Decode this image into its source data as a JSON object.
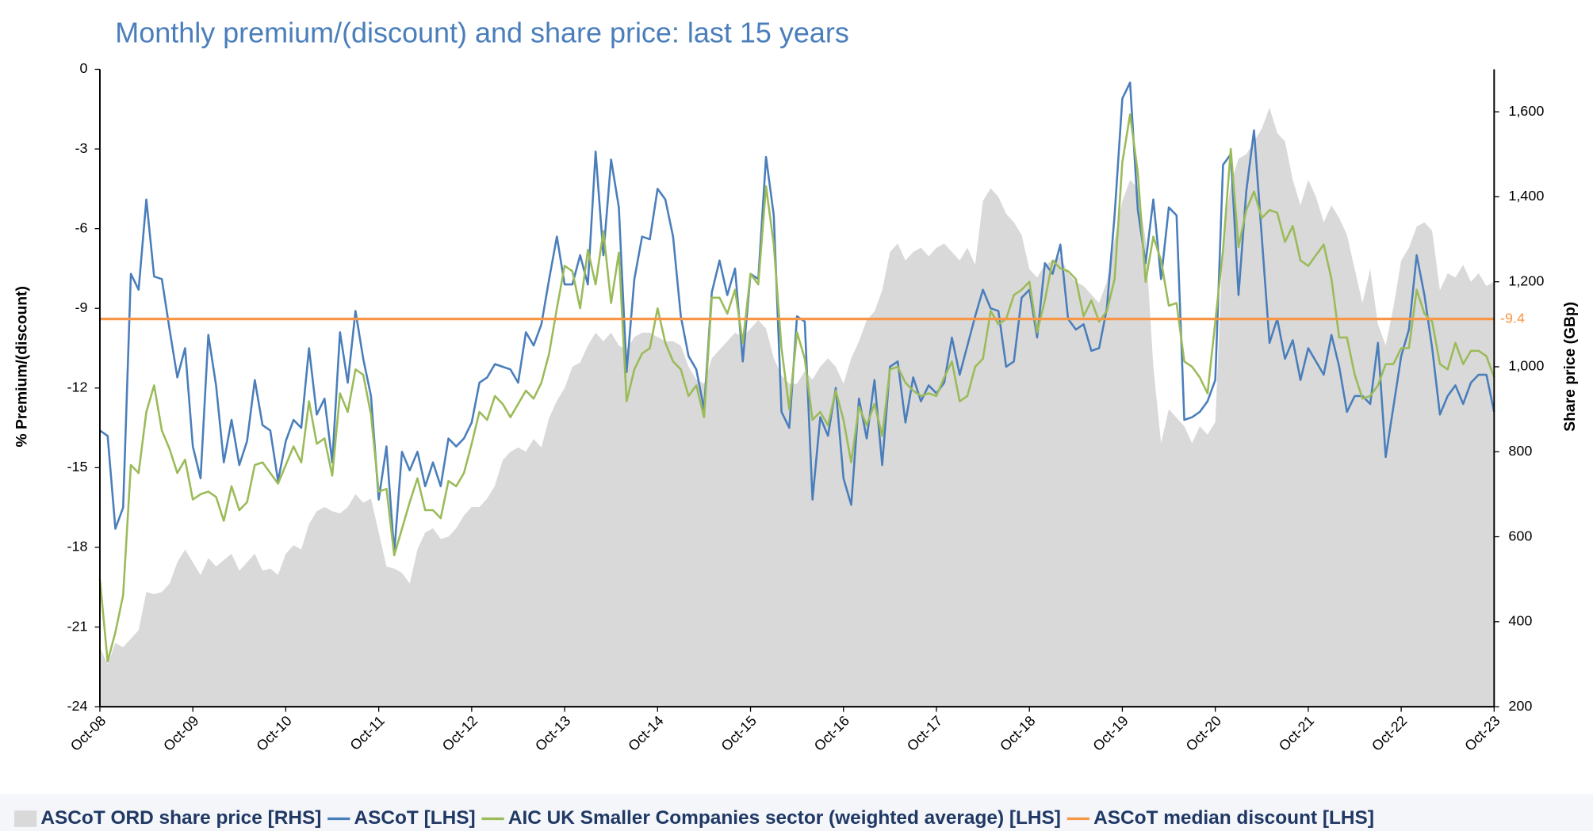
{
  "chart_data": {
    "type": "line",
    "title": "Monthly premium/(discount) and share price: last 15 years",
    "y_label": "% Premium/(discount)",
    "y2_label": "Share price (GBp)",
    "categories": [
      "Oct-08",
      null,
      null,
      null,
      null,
      null,
      null,
      null,
      null,
      null,
      null,
      null,
      "Oct-09",
      null,
      null,
      null,
      null,
      null,
      null,
      null,
      null,
      null,
      null,
      null,
      "Oct-10",
      null,
      null,
      null,
      null,
      null,
      null,
      null,
      null,
      null,
      null,
      null,
      "Oct-11",
      null,
      null,
      null,
      null,
      null,
      null,
      null,
      null,
      null,
      null,
      null,
      "Oct-12",
      null,
      null,
      null,
      null,
      null,
      null,
      null,
      null,
      null,
      null,
      null,
      "Oct-13",
      null,
      null,
      null,
      null,
      null,
      null,
      null,
      null,
      null,
      null,
      null,
      "Oct-14",
      null,
      null,
      null,
      null,
      null,
      null,
      null,
      null,
      null,
      null,
      null,
      "Oct-15",
      null,
      null,
      null,
      null,
      null,
      null,
      null,
      null,
      null,
      null,
      null,
      "Oct-16",
      null,
      null,
      null,
      null,
      null,
      null,
      null,
      null,
      null,
      null,
      null,
      "Oct-17",
      null,
      null,
      null,
      null,
      null,
      null,
      null,
      null,
      null,
      null,
      null,
      "Oct-18",
      null,
      null,
      null,
      null,
      null,
      null,
      null,
      null,
      null,
      null,
      null,
      "Oct-19",
      null,
      null,
      null,
      null,
      null,
      null,
      null,
      null,
      null,
      null,
      null,
      "Oct-20",
      null,
      null,
      null,
      null,
      null,
      null,
      null,
      null,
      null,
      null,
      null,
      "Oct-21",
      null,
      null,
      null,
      null,
      null,
      null,
      null,
      null,
      null,
      null,
      null,
      "Oct-22",
      null,
      null,
      null,
      null,
      null,
      null,
      null,
      null,
      null,
      null,
      null,
      "Oct-23"
    ],
    "series": [
      {
        "name": "ASCoT ORD share price [RHS]",
        "type": "area",
        "axis": "y2",
        "color": "#d9d9d9",
        "values": [
          340,
          300,
          350,
          340,
          360,
          380,
          470,
          465,
          470,
          490,
          540,
          570,
          540,
          510,
          550,
          530,
          545,
          560,
          520,
          540,
          560,
          520,
          525,
          510,
          560,
          580,
          570,
          630,
          660,
          670,
          660,
          655,
          670,
          700,
          680,
          690,
          610,
          530,
          525,
          515,
          490,
          570,
          610,
          620,
          595,
          600,
          620,
          650,
          670,
          670,
          690,
          720,
          780,
          800,
          810,
          800,
          830,
          810,
          880,
          920,
          950,
          1000,
          1010,
          1050,
          1080,
          1060,
          1080,
          1050,
          1040,
          1070,
          1080,
          1080,
          1070,
          1060,
          1060,
          1050,
          1000,
          970,
          960,
          1020,
          1040,
          1060,
          1080,
          1070,
          1090,
          1110,
          1090,
          1020,
          980,
          960,
          960,
          990,
          970,
          1000,
          1020,
          1000,
          960,
          1020,
          1060,
          1110,
          1130,
          1180,
          1270,
          1290,
          1250,
          1270,
          1280,
          1260,
          1280,
          1290,
          1270,
          1250,
          1280,
          1240,
          1390,
          1420,
          1400,
          1360,
          1340,
          1310,
          1230,
          1210,
          1240,
          1250,
          1260,
          1220,
          1200,
          1190,
          1170,
          1150,
          1200,
          1300,
          1390,
          1440,
          1420,
          1300,
          1000,
          820,
          900,
          880,
          860,
          820,
          860,
          840,
          870,
          1300,
          1430,
          1490,
          1500,
          1530,
          1560,
          1610,
          1550,
          1530,
          1440,
          1380,
          1440,
          1400,
          1340,
          1380,
          1350,
          1310,
          1230,
          1150,
          1230,
          1100,
          1050,
          1140,
          1250,
          1280,
          1330,
          1340,
          1320,
          1180,
          1220,
          1210,
          1240,
          1200,
          1220,
          1190,
          1200
        ]
      },
      {
        "name": "ASCoT [LHS]",
        "type": "line",
        "color": "#4a7ebb",
        "values": [
          -13.6,
          -13.8,
          -17.3,
          -16.5,
          -7.7,
          -8.3,
          -4.9,
          -7.8,
          -7.9,
          -9.8,
          -11.6,
          -10.5,
          -14.2,
          -15.4,
          -10,
          -11.9,
          -14.8,
          -13.2,
          -14.9,
          -14,
          -11.7,
          -13.4,
          -13.6,
          -15.5,
          -14,
          -13.2,
          -13.5,
          -10.5,
          -13,
          -12.4,
          -14.8,
          -9.9,
          -11.8,
          -9.1,
          -10.9,
          -12.3,
          -16.2,
          -14.2,
          -18.2,
          -14.4,
          -15.1,
          -14.4,
          -15.7,
          -14.8,
          -15.7,
          -13.9,
          -14.2,
          -13.9,
          -13.3,
          -11.8,
          -11.6,
          -11.1,
          -11.2,
          -11.3,
          -11.8,
          -9.9,
          -10.4,
          -9.6,
          -7.9,
          -6.3,
          -8.1,
          -8.1,
          -7,
          -8.1,
          -3.1,
          -7,
          -3.4,
          -5.2,
          -11.4,
          -7.9,
          -6.3,
          -6.4,
          -4.5,
          -4.9,
          -6.3,
          -9.3,
          -10.8,
          -11.3,
          -12.8,
          -8.4,
          -7.2,
          -8.5,
          -7.5,
          -11,
          -7.7,
          -7.9,
          -3.3,
          -5.5,
          -12.9,
          -13.5,
          -9.3,
          -9.5,
          -16.2,
          -13.1,
          -13.8,
          -12,
          -15.4,
          -16.4,
          -12.4,
          -13.9,
          -11.7,
          -14.9,
          -11.2,
          -11,
          -13.3,
          -11.6,
          -12.5,
          -11.9,
          -12.2,
          -11.8,
          -10.1,
          -11.5,
          -10.4,
          -9.3,
          -8.3,
          -9,
          -9.1,
          -11.2,
          -11,
          -8.6,
          -8.3,
          -10.1,
          -7.3,
          -7.7,
          -6.6,
          -9.4,
          -9.8,
          -9.6,
          -10.6,
          -10.5,
          -9,
          -5.5,
          -1.1,
          -0.5,
          -5.3,
          -7.3,
          -4.9,
          -7.9,
          -5.2,
          -5.5,
          -13.2,
          -13.1,
          -12.9,
          -12.5,
          -11.7,
          -3.6,
          -3.2,
          -8.5,
          -4.6,
          -2.3,
          -6.3,
          -10.3,
          -9.4,
          -10.9,
          -10.2,
          -11.7,
          -10.5,
          -11,
          -11.5,
          -10,
          -11.2,
          -12.9,
          -12.3,
          -12.3,
          -12.6,
          -10.3,
          -14.6,
          -12.7,
          -10.8,
          -9.8,
          -7,
          -8.5,
          -10.5,
          -13,
          -12.3,
          -11.9,
          -12.6,
          -11.8,
          -11.5,
          -11.5,
          -12.9
        ]
      },
      {
        "name": "AIC UK Smaller Companies sector (weighted average) [LHS]",
        "type": "line",
        "color": "#9bbb59",
        "values": [
          -19.2,
          -22.3,
          -21.2,
          -19.8,
          -14.9,
          -15.2,
          -12.9,
          -11.9,
          -13.6,
          -14.3,
          -15.2,
          -14.7,
          -16.2,
          -16,
          -15.9,
          -16.1,
          -17,
          -15.7,
          -16.6,
          -16.3,
          -14.9,
          -14.8,
          -15.2,
          -15.6,
          -14.9,
          -14.2,
          -14.8,
          -12.5,
          -14.1,
          -13.9,
          -15.3,
          -12.2,
          -12.9,
          -11.3,
          -11.5,
          -13,
          -15.9,
          -15.8,
          -18.3,
          -17.3,
          -16.3,
          -15.4,
          -16.6,
          -16.6,
          -16.9,
          -15.5,
          -15.7,
          -15.2,
          -14.1,
          -12.9,
          -13.2,
          -12.3,
          -12.6,
          -13.1,
          -12.6,
          -12.1,
          -12.4,
          -11.8,
          -10.7,
          -9,
          -7.4,
          -7.6,
          -9,
          -6.8,
          -8.1,
          -6.1,
          -8.8,
          -6.9,
          -12.5,
          -11.3,
          -10.7,
          -10.5,
          -9,
          -10.3,
          -11,
          -11.3,
          -12.3,
          -11.9,
          -13.1,
          -8.6,
          -8.6,
          -9.2,
          -8.3,
          -10.3,
          -7.7,
          -8.1,
          -4.4,
          -6.6,
          -10.5,
          -12.8,
          -9.9,
          -10.9,
          -13.2,
          -12.9,
          -13.4,
          -12.1,
          -13.2,
          -14.8,
          -12.7,
          -13.4,
          -12.6,
          -13.8,
          -11.3,
          -11.2,
          -11.8,
          -12.1,
          -12.3,
          -12.2,
          -12.3,
          -11.6,
          -11,
          -12.5,
          -12.3,
          -11.2,
          -10.9,
          -9.1,
          -9.6,
          -9.4,
          -8.5,
          -8.3,
          -8,
          -9.9,
          -8.7,
          -7.2,
          -7.5,
          -7.6,
          -7.9,
          -9.3,
          -8.7,
          -9.5,
          -9.1,
          -7.9,
          -3.5,
          -1.7,
          -3.9,
          -8,
          -6.3,
          -7.2,
          -8.9,
          -8.8,
          -11,
          -11.2,
          -11.6,
          -12.2,
          -9.5,
          -6.8,
          -3,
          -6.7,
          -5.3,
          -4.6,
          -5.6,
          -5.3,
          -5.4,
          -6.5,
          -5.9,
          -7.2,
          -7.4,
          -7,
          -6.6,
          -7.9,
          -10.1,
          -10.1,
          -11.5,
          -12.4,
          -12.3,
          -11.9,
          -11.1,
          -11.1,
          -10.5,
          -10.5,
          -8.3,
          -9.2,
          -9.5,
          -11.1,
          -11.3,
          -10.3,
          -11.1,
          -10.6,
          -10.6,
          -10.8,
          -11.6
        ]
      }
    ],
    "median": {
      "name": "ASCoT median discount [LHS]",
      "value": -9.4,
      "color": "#f79646"
    },
    "ylim": [
      -24,
      0
    ],
    "yticks": [
      0,
      -3,
      -6,
      -9,
      -12,
      -15,
      -18,
      -21,
      -24
    ],
    "y2lim": [
      200,
      1700
    ],
    "y2ticks": [
      200,
      400,
      600,
      800,
      {
        "value": 1000,
        "label": "1,000"
      },
      {
        "value": 1200,
        "label": "1,200"
      },
      {
        "value": 1400,
        "label": "1,400"
      },
      {
        "value": 1600,
        "label": "1,600"
      }
    ],
    "legend": "bottom"
  }
}
